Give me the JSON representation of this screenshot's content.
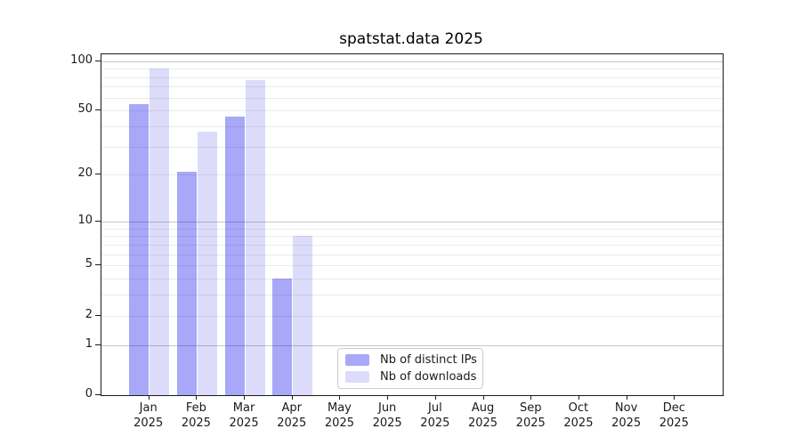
{
  "chart_data": {
    "type": "bar",
    "title": "spatstat.data 2025",
    "categories": [
      "Jan",
      "Feb",
      "Mar",
      "Apr",
      "May",
      "Jun",
      "Jul",
      "Aug",
      "Sep",
      "Oct",
      "Nov",
      "Dec"
    ],
    "category_year": "2025",
    "series": [
      {
        "name": "Nb of distinct IPs",
        "color": "#a8a8f8",
        "values": [
          55,
          21,
          46,
          4,
          0,
          0,
          0,
          0,
          0,
          0,
          0,
          0
        ]
      },
      {
        "name": "Nb of downloads",
        "color": "#dcdcfa",
        "values": [
          90,
          37,
          77,
          8,
          0,
          0,
          0,
          0,
          0,
          0,
          0,
          0
        ]
      }
    ],
    "y_scale": "log1p",
    "y_axis_ticks": [
      0,
      1,
      2,
      5,
      10,
      20,
      50,
      100
    ],
    "y_major_gridlines": [
      1,
      10,
      100
    ],
    "y_minor_gridlines": [
      2,
      3,
      4,
      5,
      6,
      7,
      8,
      9,
      20,
      30,
      40,
      50,
      60,
      70,
      80,
      90
    ],
    "ylim": [
      0,
      111
    ],
    "xlabel": "",
    "ylabel": "",
    "grid": "on",
    "legend_position": "inside-bottom-center"
  }
}
